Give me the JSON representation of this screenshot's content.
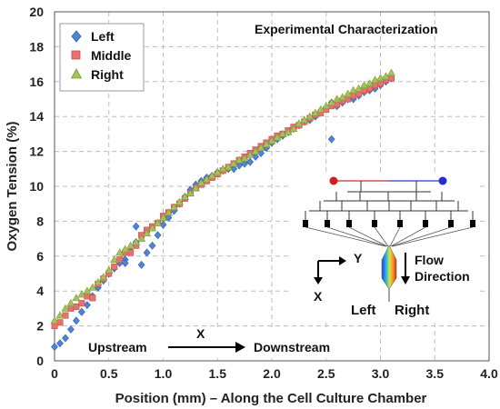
{
  "chart_data": {
    "type": "scatter",
    "title": "Experimental Characterization",
    "xlabel": "Position (mm)  – Along the Cell Culture Chamber",
    "ylabel": "Oxygen Tension (%)",
    "xlim": [
      0,
      4.0
    ],
    "ylim": [
      0,
      20
    ],
    "xticks": [
      "0",
      "0.5",
      "1.0",
      "1.5",
      "2.0",
      "2.5",
      "3.0",
      "3.5",
      "4.0"
    ],
    "yticks": [
      "0",
      "2",
      "4",
      "6",
      "8",
      "10",
      "12",
      "14",
      "16",
      "18",
      "20"
    ],
    "grid": "dashed",
    "legend_position": "top-left",
    "series": [
      {
        "name": "Left",
        "color": "#4f86d2",
        "marker": "diamond",
        "x": [
          0.0,
          0.05,
          0.1,
          0.15,
          0.2,
          0.25,
          0.3,
          0.35,
          0.4,
          0.45,
          0.5,
          0.55,
          0.6,
          0.65,
          0.7,
          0.75,
          0.8,
          0.85,
          0.9,
          0.95,
          1.0,
          1.05,
          1.1,
          1.15,
          1.2,
          1.25,
          1.3,
          1.35,
          1.4,
          1.45,
          1.5,
          1.55,
          1.6,
          1.65,
          1.7,
          1.75,
          1.8,
          1.85,
          1.9,
          1.95,
          2.0,
          2.05,
          2.1,
          2.15,
          2.2,
          2.25,
          2.3,
          2.35,
          2.4,
          2.45,
          2.5,
          2.55,
          2.6,
          2.65,
          2.7,
          2.75,
          2.8,
          2.85,
          2.9,
          2.95,
          3.0,
          3.05,
          3.1,
          0.75,
          2.55,
          0.65
        ],
        "y": [
          0.8,
          1.0,
          1.3,
          1.8,
          2.3,
          2.8,
          3.2,
          3.7,
          4.2,
          4.6,
          5.0,
          5.3,
          5.6,
          5.8,
          6.3,
          6.8,
          5.5,
          6.2,
          6.6,
          7.2,
          7.8,
          8.2,
          8.6,
          9.0,
          9.4,
          9.8,
          10.1,
          10.3,
          10.5,
          10.6,
          10.8,
          10.9,
          11.0,
          11.0,
          11.2,
          11.3,
          11.4,
          11.7,
          11.9,
          12.2,
          12.5,
          12.7,
          12.9,
          13.1,
          13.3,
          13.5,
          13.7,
          13.8,
          14.0,
          14.3,
          14.5,
          14.8,
          14.6,
          14.8,
          15.0,
          15.0,
          15.2,
          15.4,
          15.5,
          15.6,
          15.8,
          16.0,
          16.2,
          7.7,
          12.7,
          5.6
        ]
      },
      {
        "name": "Middle",
        "color": "#e8716f",
        "marker": "square",
        "x": [
          0.0,
          0.05,
          0.1,
          0.15,
          0.2,
          0.25,
          0.3,
          0.35,
          0.4,
          0.45,
          0.5,
          0.55,
          0.6,
          0.65,
          0.7,
          0.75,
          0.8,
          0.85,
          0.9,
          0.95,
          1.0,
          1.05,
          1.1,
          1.15,
          1.2,
          1.25,
          1.3,
          1.35,
          1.4,
          1.45,
          1.5,
          1.55,
          1.6,
          1.65,
          1.7,
          1.75,
          1.8,
          1.85,
          1.9,
          1.95,
          2.0,
          2.05,
          2.1,
          2.15,
          2.2,
          2.25,
          2.3,
          2.35,
          2.4,
          2.45,
          2.5,
          2.55,
          2.6,
          2.65,
          2.7,
          2.75,
          2.8,
          2.85,
          2.9,
          2.95,
          3.0,
          3.05,
          3.1
        ],
        "y": [
          2.0,
          2.2,
          2.6,
          3.0,
          3.1,
          3.3,
          3.7,
          3.6,
          4.4,
          4.7,
          5.0,
          5.4,
          5.8,
          6.2,
          6.2,
          6.6,
          7.2,
          7.5,
          7.7,
          7.9,
          8.3,
          8.5,
          8.8,
          9.0,
          9.3,
          9.6,
          9.9,
          10.1,
          10.3,
          10.5,
          10.7,
          10.9,
          11.1,
          11.3,
          11.5,
          11.7,
          11.9,
          12.1,
          12.3,
          12.5,
          12.7,
          12.9,
          13.0,
          13.2,
          13.4,
          13.5,
          13.7,
          13.9,
          14.1,
          14.2,
          14.4,
          14.6,
          14.7,
          14.9,
          15.0,
          15.2,
          15.3,
          15.5,
          15.6,
          15.8,
          15.9,
          16.1,
          16.2
        ]
      },
      {
        "name": "Right",
        "color": "#a4c15a",
        "marker": "triangle",
        "x": [
          0.0,
          0.05,
          0.1,
          0.15,
          0.2,
          0.25,
          0.3,
          0.35,
          0.4,
          0.45,
          0.5,
          0.55,
          0.6,
          0.65,
          0.7,
          0.75,
          0.8,
          0.85,
          0.9,
          0.95,
          1.0,
          1.05,
          1.1,
          1.15,
          1.2,
          1.25,
          1.3,
          1.35,
          1.4,
          1.45,
          1.5,
          1.55,
          1.6,
          1.65,
          1.7,
          1.75,
          1.8,
          1.85,
          1.9,
          1.95,
          2.0,
          2.05,
          2.1,
          2.15,
          2.2,
          2.25,
          2.3,
          2.35,
          2.4,
          2.45,
          2.5,
          2.55,
          2.6,
          2.65,
          2.7,
          2.75,
          2.8,
          2.85,
          2.9,
          2.95,
          3.0,
          3.05,
          3.1
        ],
        "y": [
          2.3,
          2.6,
          3.0,
          3.3,
          3.6,
          3.8,
          4.0,
          4.2,
          4.5,
          4.8,
          5.2,
          5.8,
          6.2,
          6.4,
          6.6,
          6.8,
          7.0,
          7.3,
          7.6,
          7.9,
          8.2,
          8.5,
          8.8,
          9.1,
          9.4,
          9.6,
          9.9,
          10.2,
          10.4,
          10.6,
          10.8,
          11.0,
          11.1,
          11.3,
          11.5,
          11.6,
          11.8,
          12.0,
          12.2,
          12.4,
          12.6,
          12.8,
          13.0,
          13.1,
          13.3,
          13.6,
          13.8,
          14.0,
          14.2,
          14.4,
          14.6,
          14.8,
          15.0,
          15.1,
          15.3,
          15.5,
          15.6,
          15.8,
          15.9,
          16.1,
          16.2,
          16.3,
          16.5
        ]
      }
    ],
    "annotations": {
      "upstream": "Upstream",
      "x_marker": "X",
      "downstream": "Downstream",
      "y_axis_label": "Y",
      "x_axis_label": "X",
      "flow_line1": "Flow",
      "flow_line2": "Direction",
      "left_label": "Left",
      "right_label": "Right",
      "left_label_color": "#3b4fd6",
      "right_label_color": "#8fae55"
    }
  }
}
